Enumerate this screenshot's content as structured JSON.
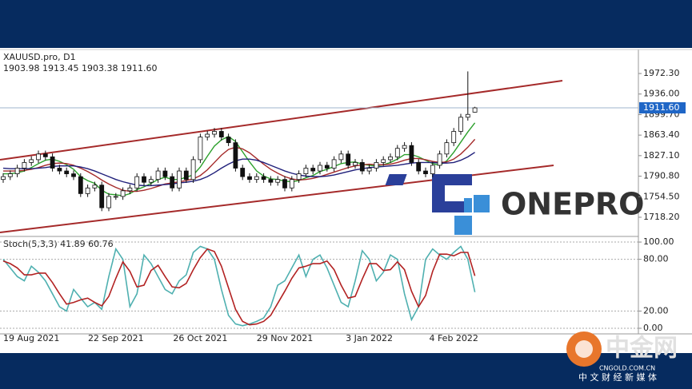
{
  "chart_data": [
    {
      "type": "candlestick",
      "title": "XAUUSD.pro, D1",
      "subtitle": "1903.98 1913.45 1903.38 1911.60",
      "categories": [
        null,
        null,
        null,
        null,
        "19 Aug 2021",
        null,
        null,
        null,
        null,
        null,
        null,
        null,
        null,
        null,
        null,
        null,
        "22 Sep 2021",
        null,
        null,
        null,
        null,
        null,
        null,
        null,
        null,
        null,
        null,
        null,
        "26 Oct 2021",
        null,
        null,
        null,
        null,
        null,
        null,
        null,
        null,
        null,
        null,
        null,
        "29 Nov 2021",
        null,
        null,
        null,
        null,
        null,
        null,
        null,
        null,
        null,
        null,
        null,
        "3 Jan 2022",
        null,
        null,
        null,
        null,
        null,
        null,
        null,
        null,
        null,
        null,
        null,
        "4 Feb 2022",
        null,
        null,
        null
      ],
      "open": [
        1785,
        1790,
        1795,
        1805,
        1815,
        1820,
        1830,
        1825,
        1805,
        1800,
        1795,
        1790,
        1760,
        1770,
        1775,
        1735,
        1755,
        1755,
        1765,
        1770,
        1790,
        1780,
        1785,
        1800,
        1790,
        1770,
        1800,
        1785,
        1820,
        1860,
        1865,
        1870,
        1860,
        1850,
        1805,
        1790,
        1785,
        1790,
        1785,
        1780,
        1785,
        1770,
        1785,
        1795,
        1805,
        1800,
        1810,
        1805,
        1820,
        1830,
        1810,
        1815,
        1800,
        1805,
        1815,
        1820,
        1825,
        1840,
        1845,
        1815,
        1800,
        1795,
        1810,
        1830,
        1850,
        1870,
        1895,
        1903.98
      ],
      "high": [
        1796,
        1801,
        1811,
        1821,
        1826,
        1836,
        1836,
        1831,
        1811,
        1806,
        1801,
        1796,
        1776,
        1781,
        1781,
        1761,
        1761,
        1771,
        1776,
        1796,
        1796,
        1791,
        1806,
        1806,
        1796,
        1806,
        1806,
        1826,
        1866,
        1871,
        1876,
        1876,
        1866,
        1856,
        1811,
        1796,
        1796,
        1796,
        1791,
        1791,
        1791,
        1791,
        1801,
        1811,
        1811,
        1816,
        1816,
        1826,
        1836,
        1836,
        1821,
        1821,
        1811,
        1821,
        1826,
        1831,
        1846,
        1851,
        1851,
        1821,
        1806,
        1816,
        1836,
        1856,
        1876,
        1901,
        1976,
        1913.45
      ],
      "low": [
        1779,
        1784,
        1789,
        1799,
        1809,
        1814,
        1819,
        1799,
        1794,
        1789,
        1784,
        1754,
        1754,
        1764,
        1729,
        1729,
        1749,
        1749,
        1759,
        1764,
        1774,
        1774,
        1779,
        1784,
        1764,
        1764,
        1779,
        1779,
        1814,
        1854,
        1859,
        1854,
        1844,
        1799,
        1784,
        1779,
        1779,
        1779,
        1774,
        1774,
        1764,
        1764,
        1779,
        1789,
        1794,
        1794,
        1799,
        1799,
        1814,
        1804,
        1804,
        1794,
        1794,
        1799,
        1809,
        1814,
        1819,
        1834,
        1809,
        1794,
        1789,
        1789,
        1804,
        1824,
        1844,
        1864,
        1889,
        1903.38
      ],
      "close": [
        1790,
        1795,
        1805,
        1815,
        1820,
        1830,
        1825,
        1805,
        1800,
        1795,
        1790,
        1760,
        1770,
        1775,
        1735,
        1755,
        1755,
        1765,
        1770,
        1790,
        1780,
        1785,
        1800,
        1790,
        1770,
        1800,
        1785,
        1820,
        1860,
        1865,
        1870,
        1860,
        1850,
        1805,
        1790,
        1785,
        1790,
        1785,
        1780,
        1785,
        1770,
        1785,
        1795,
        1805,
        1800,
        1810,
        1805,
        1820,
        1830,
        1810,
        1815,
        1800,
        1805,
        1815,
        1820,
        1825,
        1840,
        1845,
        1815,
        1800,
        1795,
        1810,
        1830,
        1850,
        1870,
        1895,
        1900,
        1911.6
      ],
      "series": [
        {
          "color": "#2ca02c",
          "values": [
            1795,
            1795,
            1797,
            1800,
            1806,
            1813,
            1819,
            1821,
            1817,
            1811,
            1803,
            1790,
            1783,
            1778,
            1766,
            1759,
            1758,
            1756,
            1760,
            1767,
            1772,
            1778,
            1785,
            1789,
            1785,
            1785,
            1789,
            1793,
            1807,
            1826,
            1844,
            1855,
            1861,
            1852,
            1834,
            1816,
            1800,
            1791,
            1786,
            1785,
            1782,
            1781,
            1783,
            1788,
            1792,
            1799,
            1803,
            1808,
            1813,
            1815,
            1816,
            1812,
            1810,
            1809,
            1811,
            1815,
            1821,
            1829,
            1829,
            1825,
            1819,
            1813,
            1810,
            1818,
            1833,
            1851,
            1869,
            1885
          ]
        },
        {
          "color": "#a52a2a",
          "values": [
            1800,
            1800,
            1800,
            1801,
            1803,
            1806,
            1810,
            1813,
            1814,
            1813,
            1810,
            1805,
            1799,
            1792,
            1784,
            1777,
            1771,
            1766,
            1764,
            1764,
            1766,
            1769,
            1773,
            1777,
            1779,
            1781,
            1783,
            1786,
            1792,
            1802,
            1815,
            1828,
            1838,
            1842,
            1839,
            1832,
            1822,
            1812,
            1803,
            1796,
            1790,
            1786,
            1784,
            1785,
            1787,
            1790,
            1794,
            1798,
            1802,
            1806,
            1809,
            1811,
            1812,
            1811,
            1811,
            1812,
            1815,
            1819,
            1822,
            1822,
            1820,
            1817,
            1815,
            1816,
            1821,
            1830,
            1842,
            1856
          ]
        },
        {
          "color": "#1f1f7a",
          "values": [
            1805,
            1804,
            1804,
            1804,
            1804,
            1805,
            1806,
            1808,
            1809,
            1809,
            1809,
            1807,
            1804,
            1800,
            1795,
            1790,
            1785,
            1781,
            1778,
            1775,
            1774,
            1774,
            1775,
            1776,
            1777,
            1779,
            1780,
            1782,
            1785,
            1790,
            1797,
            1805,
            1812,
            1818,
            1821,
            1821,
            1819,
            1815,
            1810,
            1805,
            1800,
            1796,
            1793,
            1791,
            1790,
            1790,
            1791,
            1793,
            1796,
            1799,
            1802,
            1804,
            1806,
            1807,
            1808,
            1809,
            1810,
            1812,
            1814,
            1815,
            1815,
            1815,
            1814,
            1814,
            1815,
            1819,
            1825,
            1833
          ]
        }
      ],
      "current_price": {
        "value": 1911.6,
        "label": "1911.60"
      },
      "ylim": [
        1685.7,
        2014.7
      ],
      "yticks": [
        {
          "value": 1972.3,
          "label": "1972.30"
        },
        {
          "value": 1936,
          "label": "1936.00"
        },
        {
          "value": 1899.7,
          "label": "1899.70"
        },
        {
          "value": 1863.4,
          "label": "1863.40"
        },
        {
          "value": 1827.1,
          "label": "1827.10"
        },
        {
          "value": 1790.8,
          "label": "1790.80"
        },
        {
          "value": 1754.5,
          "label": "1754.50"
        },
        {
          "value": 1718.2,
          "label": "1718.20"
        }
      ]
    },
    {
      "type": "line",
      "title": "Stoch(5,3,3) 41.89 60.76",
      "series": [
        {
          "color": "#4fb0b0",
          "values": [
            80,
            70,
            60,
            55,
            72,
            65,
            55,
            40,
            25,
            20,
            45,
            35,
            25,
            30,
            22,
            60,
            92,
            80,
            25,
            40,
            85,
            75,
            60,
            45,
            40,
            55,
            62,
            88,
            95,
            92,
            80,
            45,
            15,
            5,
            3,
            5,
            8,
            12,
            25,
            50,
            55,
            70,
            85,
            60,
            80,
            85,
            70,
            50,
            30,
            25,
            55,
            90,
            80,
            55,
            65,
            85,
            80,
            40,
            10,
            25,
            80,
            92,
            85,
            80,
            88,
            95,
            80,
            41.89
          ]
        },
        {
          "color": "#b22222",
          "values": [
            78,
            75,
            70,
            62,
            62,
            64,
            64,
            53,
            40,
            28,
            30,
            33,
            35,
            30,
            26,
            37,
            58,
            77,
            66,
            48,
            50,
            67,
            73,
            60,
            48,
            47,
            52,
            68,
            82,
            92,
            89,
            72,
            47,
            22,
            8,
            4,
            5,
            8,
            15,
            29,
            43,
            58,
            70,
            72,
            75,
            75,
            78,
            68,
            50,
            35,
            37,
            57,
            75,
            75,
            67,
            68,
            77,
            68,
            43,
            25,
            38,
            66,
            86,
            86,
            84,
            88,
            88,
            60.76
          ]
        }
      ],
      "ylim": [
        -6.5,
        105.6
      ],
      "yticks": [
        {
          "value": 100,
          "label": "100.00"
        },
        {
          "value": 80,
          "label": "80.00"
        },
        {
          "value": 20,
          "label": "20.00"
        },
        {
          "value": 0,
          "label": "0.00"
        }
      ]
    }
  ],
  "logo": {
    "text": "ONEPRO"
  },
  "watermark": {
    "name": "中金网",
    "site": "CNGOLD.COM.CN",
    "slogan": "中 文 财 经 新 媒 体"
  }
}
